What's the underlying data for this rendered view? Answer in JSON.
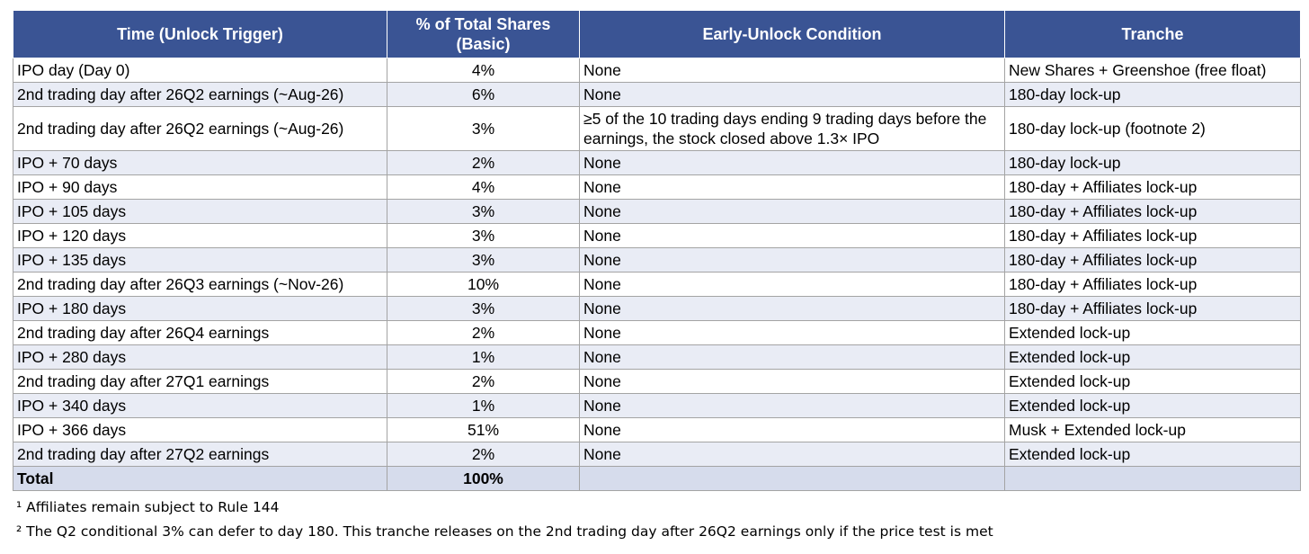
{
  "table": {
    "headers": [
      "Time (Unlock Trigger)",
      "% of Total Shares (Basic)",
      "Early-Unlock Condition",
      "Tranche"
    ],
    "rows": [
      [
        "IPO day (Day 0)",
        "4%",
        "None",
        "New Shares + Greenshoe (free float)"
      ],
      [
        "2nd trading day after 26Q2 earnings (~Aug-26)",
        "6%",
        "None",
        "180-day lock-up"
      ],
      [
        "2nd trading day after 26Q2 earnings (~Aug-26)",
        "3%",
        "≥5 of the 10 trading days ending 9 trading days before the earnings, the stock closed above 1.3× IPO",
        "180-day lock-up (footnote 2)"
      ],
      [
        "IPO + 70 days",
        "2%",
        "None",
        "180-day lock-up"
      ],
      [
        "IPO + 90 days",
        "4%",
        "None",
        "180-day + Affiliates lock-up"
      ],
      [
        "IPO + 105 days",
        "3%",
        "None",
        "180-day + Affiliates lock-up"
      ],
      [
        "IPO + 120 days",
        "3%",
        "None",
        "180-day + Affiliates lock-up"
      ],
      [
        "IPO + 135 days",
        "3%",
        "None",
        "180-day + Affiliates lock-up"
      ],
      [
        "2nd trading day after 26Q3 earnings (~Nov-26)",
        "10%",
        "None",
        "180-day + Affiliates lock-up"
      ],
      [
        "IPO + 180 days",
        "3%",
        "None",
        "180-day + Affiliates lock-up"
      ],
      [
        "2nd trading day after 26Q4 earnings",
        "2%",
        "None",
        "Extended lock-up"
      ],
      [
        "IPO + 280 days",
        "1%",
        "None",
        "Extended lock-up"
      ],
      [
        "2nd trading day after 27Q1 earnings",
        "2%",
        "None",
        "Extended lock-up"
      ],
      [
        "IPO + 340 days",
        "1%",
        "None",
        "Extended lock-up"
      ],
      [
        "IPO + 366 days",
        "51%",
        "None",
        "Musk + Extended lock-up"
      ],
      [
        "2nd trading day after 27Q2 earnings",
        "2%",
        "None",
        "Extended lock-up"
      ]
    ],
    "total": {
      "label": "Total",
      "value": "100%"
    }
  },
  "footnotes": [
    "¹ Affiliates remain subject to Rule 144",
    "² The Q2 conditional 3% can defer to day 180. This tranche releases on the 2nd trading day after 26Q2 earnings only if the price test is met"
  ],
  "colors": {
    "header_bg": "#3a5494",
    "row_alt_bg": "#e9ecf5",
    "total_bg": "#d6dcec",
    "border": "#a4a4a4"
  }
}
